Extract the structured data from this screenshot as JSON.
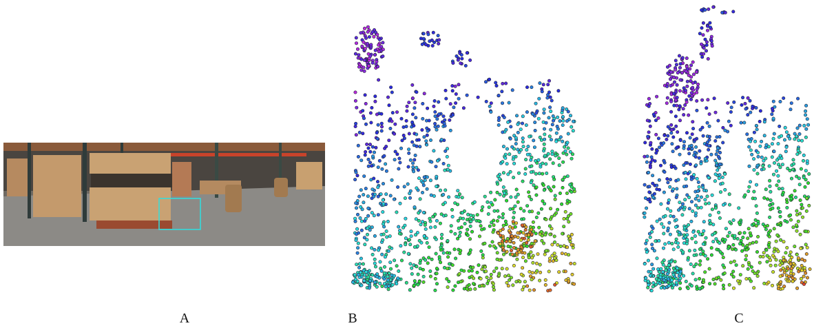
{
  "figure": {
    "panels": [
      {
        "label": "A"
      },
      {
        "label": "B"
      },
      {
        "label": "C"
      }
    ]
  }
}
